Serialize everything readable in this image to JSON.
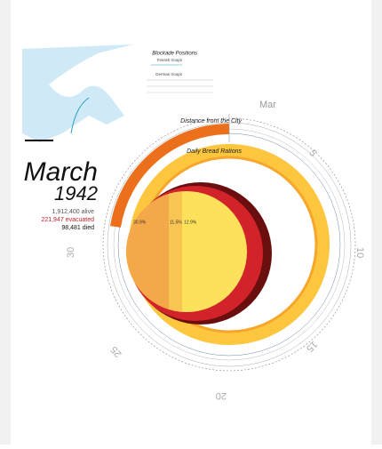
{
  "map": {
    "title": "Blockade Positions",
    "legend": [
      "Finnish troops",
      "German troops"
    ]
  },
  "ring": {
    "month": "Mar",
    "labels": [
      "Distance from the City",
      "Daily Bread Rations"
    ],
    "days": [
      "5",
      "10",
      "15",
      "20",
      "25",
      "30"
    ]
  },
  "summary": {
    "month": "March",
    "year": "1942",
    "alive": "1,912,400 alive",
    "evacuated": "221,947 evacuated",
    "died": "98,481 died"
  },
  "pie": {
    "labels": [
      "30.9%",
      "11.5%",
      "12.9%"
    ]
  }
}
